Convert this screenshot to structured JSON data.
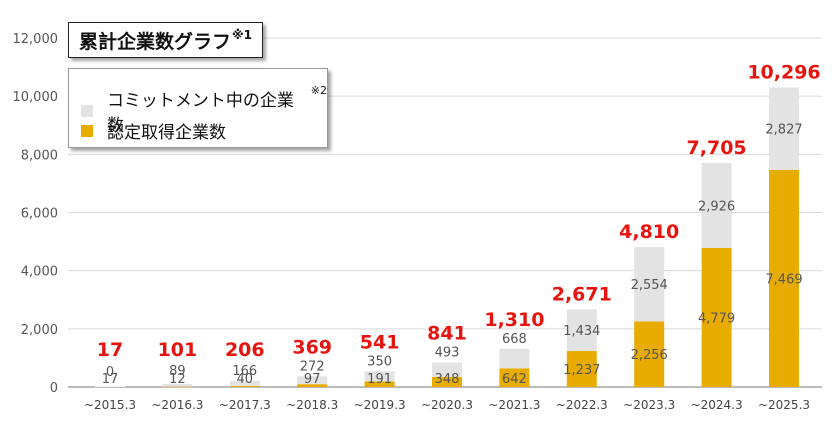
{
  "title": "累計企業数グラフ",
  "title_note": "※1",
  "colors": {
    "commitment": "#e3e3e3",
    "certified": "#e8ac00",
    "total_label": "#e6140f",
    "segment_label": "#555555",
    "grid": "#d9d9d9",
    "axis": "#777777"
  },
  "legend": {
    "items": [
      {
        "label": "コミットメント中の企業数",
        "note": "※2",
        "color": "#e3e3e3"
      },
      {
        "label": "認定取得企業数",
        "note": "",
        "color": "#e8ac00"
      }
    ]
  },
  "chart_data": {
    "type": "bar",
    "stacked": true,
    "categories": [
      "~2015.3",
      "~2016.3",
      "~2017.3",
      "~2018.3",
      "~2019.3",
      "~2020.3",
      "~2021.3",
      "~2022.3",
      "~2023.3",
      "~2024.3",
      "~2025.3"
    ],
    "series": [
      {
        "name": "認定取得企業数",
        "values": [
          17,
          12,
          40,
          97,
          191,
          348,
          642,
          1237,
          2256,
          4779,
          7469
        ]
      },
      {
        "name": "コミットメント中の企業数",
        "values": [
          0,
          89,
          166,
          272,
          350,
          493,
          668,
          1434,
          2554,
          2926,
          2827
        ]
      }
    ],
    "totals": [
      17,
      101,
      206,
      369,
      541,
      841,
      1310,
      2671,
      4810,
      7705,
      10296
    ],
    "total_labels": [
      "17",
      "101",
      "206",
      "369",
      "541",
      "841",
      "1,310",
      "2,671",
      "4,810",
      "7,705",
      "10,296"
    ],
    "segment_labels": {
      "certified": [
        "17",
        "12",
        "40",
        "97",
        "191",
        "348",
        "642",
        "1,237",
        "2,256",
        "4,779",
        "7,469"
      ],
      "commitment": [
        "0",
        "89",
        "166",
        "272",
        "350",
        "493",
        "668",
        "1,434",
        "2,554",
        "2,926",
        "2,827"
      ]
    },
    "y_ticks": [
      0,
      2000,
      4000,
      6000,
      8000,
      10000,
      12000
    ],
    "y_tick_labels": [
      "0",
      "2,000",
      "4,000",
      "6,000",
      "8,000",
      "10,000",
      "12,000"
    ],
    "ylim": [
      0,
      12000
    ],
    "grid": true,
    "legend_position": "top-left"
  }
}
